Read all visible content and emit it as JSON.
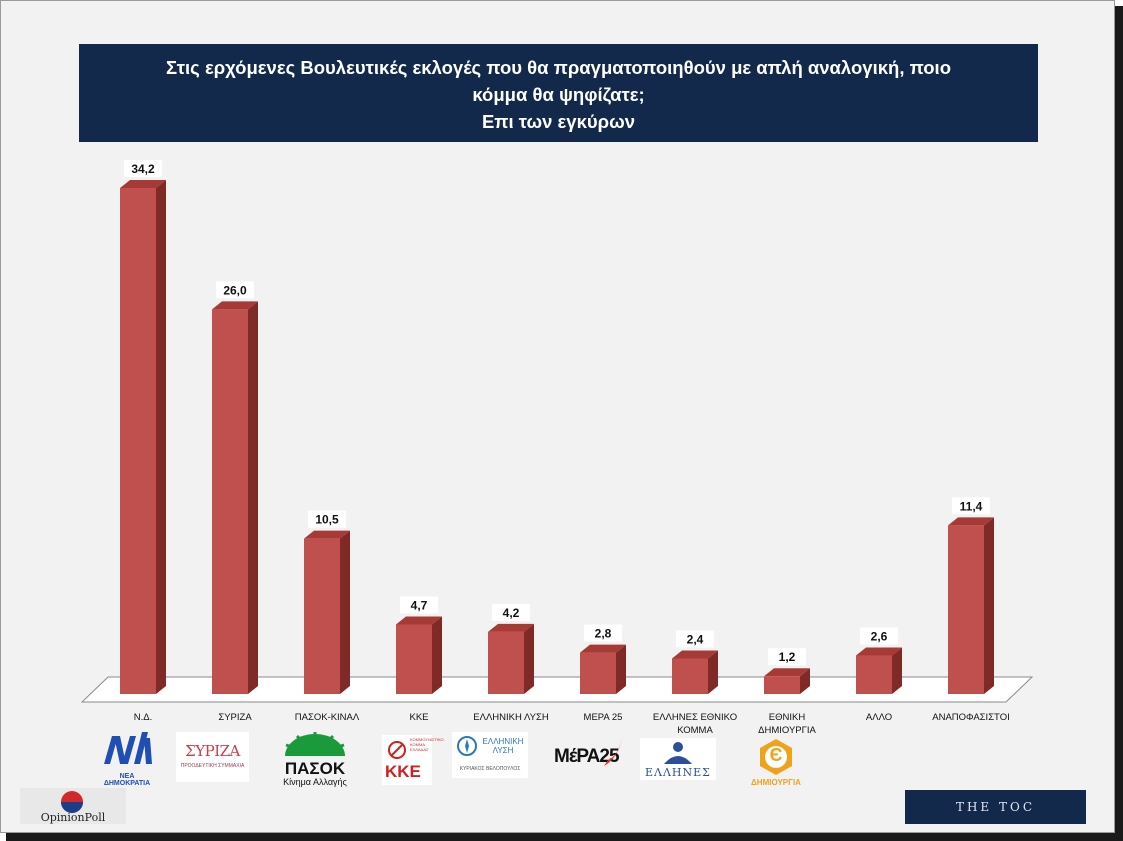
{
  "title_lines": [
    "Στις ερχόμενες Βουλευτικές εκλογές που θα πραγματοποιηθούν με απλή αναλογική, ποιο",
    "κόμμα θα ψηφίζατε;",
    "Επι των εγκύρων"
  ],
  "colors": {
    "bar_front": "#c0504d",
    "bar_top": "#a53a37",
    "bar_side": "#7f2a27",
    "title_bg": "#13294b",
    "floor": "#ffffff"
  },
  "chart_data": {
    "type": "bar",
    "title": "Στις ερχόμενες Βουλευτικές εκλογές που θα πραγματοποιηθούν με απλή αναλογική, ποιο κόμμα θα ψηφίζατε; Επι των εγκύρων",
    "categories": [
      "Ν.Δ.",
      "ΣΥΡΙΖΑ",
      "ΠΑΣΟΚ-ΚΙΝΑΛ",
      "ΚΚΕ",
      "ΕΛΛΗΝΙΚΗ ΛΥΣΗ",
      "ΜΕΡΑ 25",
      "ΕΛΛΗΝΕΣ ΕΘΝΙΚΟ ΚΟΜΜΑ",
      "ΕΘΝΙΚΗ ΔΗΜΙΟΥΡΓΙΑ",
      "ΑΛΛΟ",
      "ΑΝΑΠΟΦΑΣΙΣΤΟΙ"
    ],
    "category_lines": [
      [
        "Ν.Δ."
      ],
      [
        "ΣΥΡΙΖΑ"
      ],
      [
        "ΠΑΣΟΚ-ΚΙΝΑΛ"
      ],
      [
        "ΚΚΕ"
      ],
      [
        "ΕΛΛΗΝΙΚΗ ΛΥΣΗ"
      ],
      [
        "ΜΕΡΑ 25"
      ],
      [
        "ΕΛΛΗΝΕΣ ΕΘΝΙΚΟ",
        "ΚΟΜΜΑ"
      ],
      [
        "ΕΘΝΙΚΗ",
        "ΔΗΜΙΟΥΡΓΙΑ"
      ],
      [
        "ΑΛΛΟ"
      ],
      [
        "ΑΝΑΠΟΦΑΣΙΣΤΟΙ"
      ]
    ],
    "values": [
      34.2,
      26.0,
      10.5,
      4.7,
      4.2,
      2.8,
      2.4,
      1.2,
      2.6,
      11.4
    ],
    "value_labels": [
      "34,2",
      "26,0",
      "10,5",
      "4,7",
      "4,2",
      "2,8",
      "2,4",
      "1,2",
      "2,6",
      "11,4"
    ],
    "ylim": [
      0,
      34.2
    ],
    "grid": false,
    "legend": "none"
  },
  "logos": {
    "nd": {
      "mark": "ΝΔ",
      "caption": "ΝΕΑ ΔΗΜΟΚΡΑΤΙΑ"
    },
    "syriza": {
      "mark": "ΣΥΡΙΖΑ",
      "caption": "ΠΡΟΟΔΕΥΤΙΚΗ ΣΥΜΜΑΧΙΑ"
    },
    "pasok": {
      "mark": "ΠΑΣΟΚ",
      "caption": "Κίνημα Αλλαγής"
    },
    "kke": {
      "mark": "ΚΚΕ",
      "caption": "ΚΟΜΜΟΥΝΙΣΤΙΚΟ ΚΟΜΜΑ ΕΛΛΑΔΑΣ"
    },
    "el_lysi": {
      "mark": "ΕΛΛΗΝΙΚΗ ΛΥΣΗ",
      "caption": "ΚΥΡΙΑΚΟΣ ΒΕΛΟΠΟΥΛΟΣ"
    },
    "mera25": {
      "mark": "ΜέΡΑ25"
    },
    "ellines": {
      "mark": "ΕΛΛΗΝΕΣ"
    },
    "ethniki": {
      "mark": "Є",
      "caption": "ΔΗΜΙΟΥΡΓΙΑ"
    },
    "opinionpoll": {
      "mark": "OpinionPoll"
    },
    "toc": {
      "mark": "THE TOC"
    }
  }
}
